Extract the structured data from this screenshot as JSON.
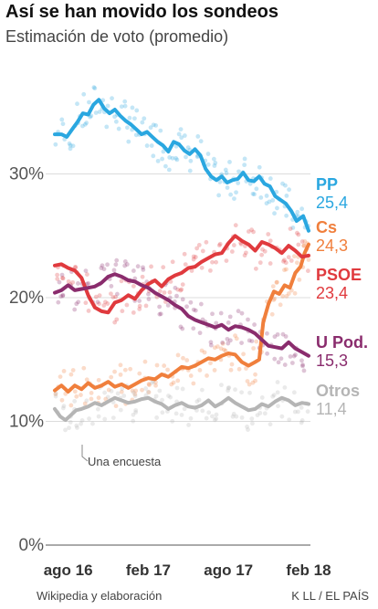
{
  "header": {
    "title": "Así se han movido los sondeos",
    "subtitle": "Estimación de voto (promedio)"
  },
  "footer": {
    "source": "Wikipedia y elaboración",
    "credit": "K LL / EL PAÍS"
  },
  "annotation": "Una encuesta",
  "chart_data": {
    "type": "line",
    "title": "Así se han movido los sondeos",
    "subtitle": "Estimación de voto (promedio)",
    "x_unit": "months since Jul 2016",
    "x_range": [
      0,
      19
    ],
    "ylim": [
      0,
      40
    ],
    "y_ticks": [
      0,
      10,
      20,
      30
    ],
    "y_tick_labels": [
      "0%",
      "10%",
      "20%",
      "30%"
    ],
    "x_ticks": [
      1,
      7,
      13,
      19
    ],
    "x_tick_labels": [
      "ago 16",
      "feb 17",
      "ago 17",
      "feb 18"
    ],
    "grid": "horizontal",
    "series": [
      {
        "name": "PP",
        "final_label": "25,4",
        "color": "#2aa7e0",
        "points": [
          [
            0,
            33.2
          ],
          [
            0.5,
            33.2
          ],
          [
            0.9,
            33.0
          ],
          [
            1.3,
            33.6
          ],
          [
            1.7,
            34.2
          ],
          [
            2.1,
            34.9
          ],
          [
            2.5,
            34.8
          ],
          [
            2.9,
            35.6
          ],
          [
            3.3,
            36.0
          ],
          [
            3.7,
            35.3
          ],
          [
            4.1,
            34.9
          ],
          [
            4.5,
            35.2
          ],
          [
            4.9,
            34.7
          ],
          [
            5.3,
            34.3
          ],
          [
            5.7,
            34.0
          ],
          [
            6.1,
            33.6
          ],
          [
            6.5,
            33.2
          ],
          [
            6.9,
            33.4
          ],
          [
            7.3,
            33.0
          ],
          [
            7.7,
            32.6
          ],
          [
            8.1,
            32.3
          ],
          [
            8.5,
            31.8
          ],
          [
            8.9,
            32.6
          ],
          [
            9.3,
            32.4
          ],
          [
            9.7,
            31.9
          ],
          [
            10.1,
            31.6
          ],
          [
            10.5,
            32.0
          ],
          [
            10.9,
            31.5
          ],
          [
            11.3,
            30.4
          ],
          [
            11.7,
            29.8
          ],
          [
            12.1,
            29.5
          ],
          [
            12.5,
            29.8
          ],
          [
            12.9,
            29.3
          ],
          [
            13.3,
            29.5
          ],
          [
            13.7,
            29.6
          ],
          [
            14.1,
            30.1
          ],
          [
            14.5,
            29.5
          ],
          [
            14.9,
            29.4
          ],
          [
            15.3,
            29.8
          ],
          [
            15.7,
            29.2
          ],
          [
            16.1,
            29.0
          ],
          [
            16.5,
            28.2
          ],
          [
            16.9,
            27.9
          ],
          [
            17.3,
            27.6
          ],
          [
            17.7,
            27.0
          ],
          [
            18.1,
            26.2
          ],
          [
            18.6,
            26.6
          ],
          [
            19,
            25.4
          ]
        ]
      },
      {
        "name": "Cs",
        "final_label": "24,3",
        "color": "#f07f3c",
        "points": [
          [
            0,
            12.5
          ],
          [
            0.5,
            12.9
          ],
          [
            1,
            12.4
          ],
          [
            1.5,
            12.9
          ],
          [
            2,
            12.6
          ],
          [
            2.5,
            13.1
          ],
          [
            3,
            12.7
          ],
          [
            3.5,
            12.9
          ],
          [
            4,
            13.2
          ],
          [
            4.5,
            12.8
          ],
          [
            5,
            13.0
          ],
          [
            5.5,
            12.7
          ],
          [
            6,
            13.0
          ],
          [
            6.5,
            13.3
          ],
          [
            7,
            13.5
          ],
          [
            7.5,
            13.4
          ],
          [
            8,
            13.8
          ],
          [
            8.5,
            13.6
          ],
          [
            9,
            14.0
          ],
          [
            9.5,
            14.4
          ],
          [
            10,
            14.3
          ],
          [
            10.5,
            14.5
          ],
          [
            11,
            14.8
          ],
          [
            11.5,
            15.1
          ],
          [
            12,
            15.0
          ],
          [
            12.5,
            15.3
          ],
          [
            13,
            15.5
          ],
          [
            13.5,
            15.4
          ],
          [
            14,
            14.8
          ],
          [
            14.5,
            14.5
          ],
          [
            15,
            14.8
          ],
          [
            15.3,
            15.0
          ],
          [
            15.6,
            18.0
          ],
          [
            16,
            19.5
          ],
          [
            16.4,
            20.5
          ],
          [
            16.8,
            20.3
          ],
          [
            17.2,
            21.0
          ],
          [
            17.6,
            20.8
          ],
          [
            18,
            22.0
          ],
          [
            18.4,
            22.5
          ],
          [
            18.7,
            23.6
          ],
          [
            19,
            24.3
          ]
        ]
      },
      {
        "name": "PSOE",
        "final_label": "23,4",
        "color": "#e03a3e",
        "points": [
          [
            0,
            22.6
          ],
          [
            0.5,
            22.7
          ],
          [
            1,
            22.4
          ],
          [
            1.5,
            22.2
          ],
          [
            2,
            21.6
          ],
          [
            2.5,
            20.2
          ],
          [
            3,
            19.2
          ],
          [
            3.5,
            18.9
          ],
          [
            4,
            18.8
          ],
          [
            4.5,
            19.6
          ],
          [
            5,
            19.8
          ],
          [
            5.5,
            20.2
          ],
          [
            6,
            19.9
          ],
          [
            6.5,
            20.6
          ],
          [
            7,
            21.1
          ],
          [
            7.5,
            21.4
          ],
          [
            8,
            20.9
          ],
          [
            8.5,
            21.5
          ],
          [
            9,
            21.8
          ],
          [
            9.5,
            22.0
          ],
          [
            10,
            22.4
          ],
          [
            10.5,
            22.5
          ],
          [
            11,
            22.9
          ],
          [
            11.5,
            23.2
          ],
          [
            12,
            23.5
          ],
          [
            12.5,
            23.6
          ],
          [
            13,
            24.4
          ],
          [
            13.5,
            25.0
          ],
          [
            14,
            24.6
          ],
          [
            14.5,
            24.3
          ],
          [
            15,
            23.8
          ],
          [
            15.5,
            24.5
          ],
          [
            16,
            24.3
          ],
          [
            16.5,
            24.0
          ],
          [
            17,
            23.6
          ],
          [
            17.5,
            24.2
          ],
          [
            18,
            23.8
          ],
          [
            18.5,
            23.3
          ],
          [
            19,
            23.4
          ]
        ]
      },
      {
        "name": "U Pod.",
        "final_label": "15,3",
        "color": "#8a2c6d",
        "points": [
          [
            0,
            20.4
          ],
          [
            0.5,
            20.6
          ],
          [
            1,
            21.0
          ],
          [
            1.5,
            20.6
          ],
          [
            2,
            20.7
          ],
          [
            2.5,
            20.8
          ],
          [
            3,
            20.9
          ],
          [
            3.5,
            21.2
          ],
          [
            4,
            21.7
          ],
          [
            4.5,
            21.9
          ],
          [
            5,
            21.7
          ],
          [
            5.5,
            21.4
          ],
          [
            6,
            21.3
          ],
          [
            6.5,
            21.0
          ],
          [
            7,
            20.8
          ],
          [
            7.5,
            20.4
          ],
          [
            8,
            20.1
          ],
          [
            8.5,
            19.8
          ],
          [
            9,
            19.4
          ],
          [
            9.5,
            19.1
          ],
          [
            10,
            18.5
          ],
          [
            10.5,
            18.2
          ],
          [
            11,
            18.0
          ],
          [
            11.5,
            17.8
          ],
          [
            12,
            17.6
          ],
          [
            12.5,
            17.8
          ],
          [
            13,
            17.4
          ],
          [
            13.5,
            17.7
          ],
          [
            14,
            17.6
          ],
          [
            14.5,
            17.4
          ],
          [
            15,
            17.1
          ],
          [
            15.5,
            16.6
          ],
          [
            16,
            16.1
          ],
          [
            16.5,
            16.0
          ],
          [
            17,
            15.9
          ],
          [
            17.5,
            16.4
          ],
          [
            18,
            15.9
          ],
          [
            18.5,
            15.6
          ],
          [
            19,
            15.3
          ]
        ]
      },
      {
        "name": "Otros",
        "final_label": "11,4",
        "color": "#b5b5b5",
        "points": [
          [
            0,
            11.0
          ],
          [
            0.4,
            10.4
          ],
          [
            0.8,
            10.1
          ],
          [
            1.2,
            10.5
          ],
          [
            1.6,
            10.9
          ],
          [
            2,
            11.0
          ],
          [
            2.5,
            11.2
          ],
          [
            3,
            11.5
          ],
          [
            3.5,
            11.3
          ],
          [
            4,
            11.6
          ],
          [
            4.5,
            11.9
          ],
          [
            5,
            11.7
          ],
          [
            5.5,
            11.5
          ],
          [
            6,
            11.6
          ],
          [
            6.5,
            11.8
          ],
          [
            7,
            11.9
          ],
          [
            7.5,
            11.6
          ],
          [
            8,
            11.4
          ],
          [
            8.5,
            11.0
          ],
          [
            9,
            11.3
          ],
          [
            9.5,
            11.5
          ],
          [
            10,
            11.2
          ],
          [
            10.5,
            11.1
          ],
          [
            11,
            11.3
          ],
          [
            11.5,
            11.7
          ],
          [
            12,
            11.2
          ],
          [
            12.5,
            11.5
          ],
          [
            13,
            11.9
          ],
          [
            13.5,
            11.5
          ],
          [
            14,
            11.2
          ],
          [
            14.5,
            10.9
          ],
          [
            15,
            11.0
          ],
          [
            15.5,
            11.4
          ],
          [
            16,
            11.2
          ],
          [
            16.5,
            11.6
          ],
          [
            17,
            11.9
          ],
          [
            17.5,
            11.7
          ],
          [
            18,
            11.3
          ],
          [
            18.5,
            11.5
          ],
          [
            19,
            11.4
          ]
        ]
      }
    ]
  }
}
